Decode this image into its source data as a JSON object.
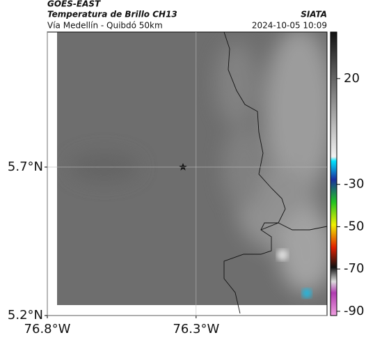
{
  "header": {
    "source": "GOES-EAST",
    "title": "Temperatura de Brillo CH13",
    "agency": "SIATA",
    "subtitle": "Vía Medellín - Quibdó 50km",
    "datetime": "2024-10-05 10:09"
  },
  "map": {
    "xlim": [
      -76.8,
      -75.86
    ],
    "ylim": [
      5.2,
      6.155
    ],
    "xticks": [
      {
        "value": -76.8,
        "label": "76.8°W"
      },
      {
        "value": -76.3,
        "label": "76.3°W"
      }
    ],
    "yticks": [
      {
        "value": 5.2,
        "label": "5.2°N"
      },
      {
        "value": 5.7,
        "label": "5.7°N"
      }
    ]
  },
  "colorbar": {
    "lim": [
      42,
      -92
    ],
    "ticks": [
      20,
      -30,
      -50,
      -70,
      -90
    ]
  }
}
